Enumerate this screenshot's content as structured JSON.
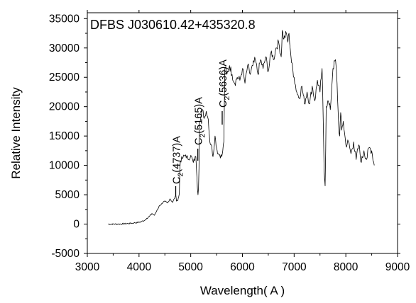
{
  "chart_data": {
    "type": "line",
    "title": "DFBS J030610.42+435320.8",
    "xlabel": "Wavelength( A )",
    "ylabel": "Relative Intensity",
    "xlim": [
      3000,
      9000
    ],
    "ylim": [
      -5000,
      36000
    ],
    "x_ticks": [
      3000,
      4000,
      5000,
      6000,
      7000,
      8000,
      9000
    ],
    "y_ticks": [
      -5000,
      0,
      5000,
      10000,
      15000,
      20000,
      25000,
      30000,
      35000
    ],
    "grid": false,
    "line_color": "#000000",
    "series": [
      {
        "x": [
          3400,
          3600,
          3800,
          3900,
          4000,
          4100,
          4150,
          4200,
          4250,
          4300,
          4350,
          4400,
          4450,
          4500,
          4550,
          4600,
          4650,
          4700,
          4750,
          4780,
          4790,
          4800,
          4850,
          4900,
          4950,
          5000,
          5050,
          5100,
          5120,
          5140,
          5150,
          5160,
          5170,
          5200,
          5230,
          5260,
          5300,
          5340,
          5370,
          5400,
          5430,
          5470,
          5500,
          5530,
          5560,
          5600,
          5620,
          5640,
          5660,
          5700,
          5750,
          5800,
          5850,
          5900,
          5950,
          6000,
          6050,
          6100,
          6150,
          6200,
          6250,
          6300,
          6350,
          6400,
          6450,
          6500,
          6560,
          6600,
          6650,
          6700,
          6750,
          6770,
          6800,
          6850,
          6880,
          6900,
          6950,
          7000,
          7050,
          7100,
          7150,
          7200,
          7250,
          7300,
          7350,
          7400,
          7450,
          7500,
          7540,
          7560,
          7580,
          7600,
          7620,
          7650,
          7700,
          7750,
          7800,
          7830,
          7860,
          7880,
          7900,
          7920,
          7950,
          8000,
          8050,
          8100,
          8150,
          8200,
          8250,
          8300,
          8350,
          8400,
          8450,
          8500,
          8550
        ],
        "y": [
          0,
          0,
          100,
          200,
          300,
          600,
          1000,
          1300,
          1800,
          1500,
          2400,
          3200,
          3500,
          3900,
          3600,
          4300,
          3700,
          4700,
          4000,
          5200,
          9500,
          10800,
          11300,
          11800,
          11000,
          11700,
          10500,
          11500,
          8000,
          5000,
          6000,
          9500,
          17500,
          18500,
          19500,
          18000,
          19200,
          17800,
          14000,
          13500,
          11500,
          15000,
          13000,
          12000,
          11800,
          11500,
          12500,
          14000,
          26500,
          25500,
          27000,
          25500,
          24000,
          25000,
          24500,
          26500,
          24000,
          27000,
          25500,
          27000,
          28000,
          25500,
          28000,
          26500,
          28500,
          26000,
          29500,
          28000,
          30000,
          31000,
          28500,
          33000,
          31500,
          32500,
          31000,
          32500,
          27500,
          25000,
          22500,
          21500,
          23500,
          20500,
          22500,
          20500,
          23500,
          21000,
          24500,
          22500,
          26500,
          19000,
          9000,
          6500,
          20000,
          21000,
          19500,
          26500,
          28000,
          24000,
          17000,
          15000,
          19000,
          16000,
          17500,
          13500,
          14000,
          12000,
          14000,
          11000,
          13500,
          10500,
          12500,
          11000,
          13000,
          12500,
          10000
        ]
      }
    ],
    "annotations": [
      {
        "base": "C",
        "sub": "2",
        "rest": "(4737)A",
        "x": 4737
      },
      {
        "base": "C",
        "sub": "2",
        "rest": "(5165)A",
        "x": 5165
      },
      {
        "base": "C",
        "sub": "2",
        "rest": "(5636)A",
        "x": 5636
      }
    ]
  }
}
